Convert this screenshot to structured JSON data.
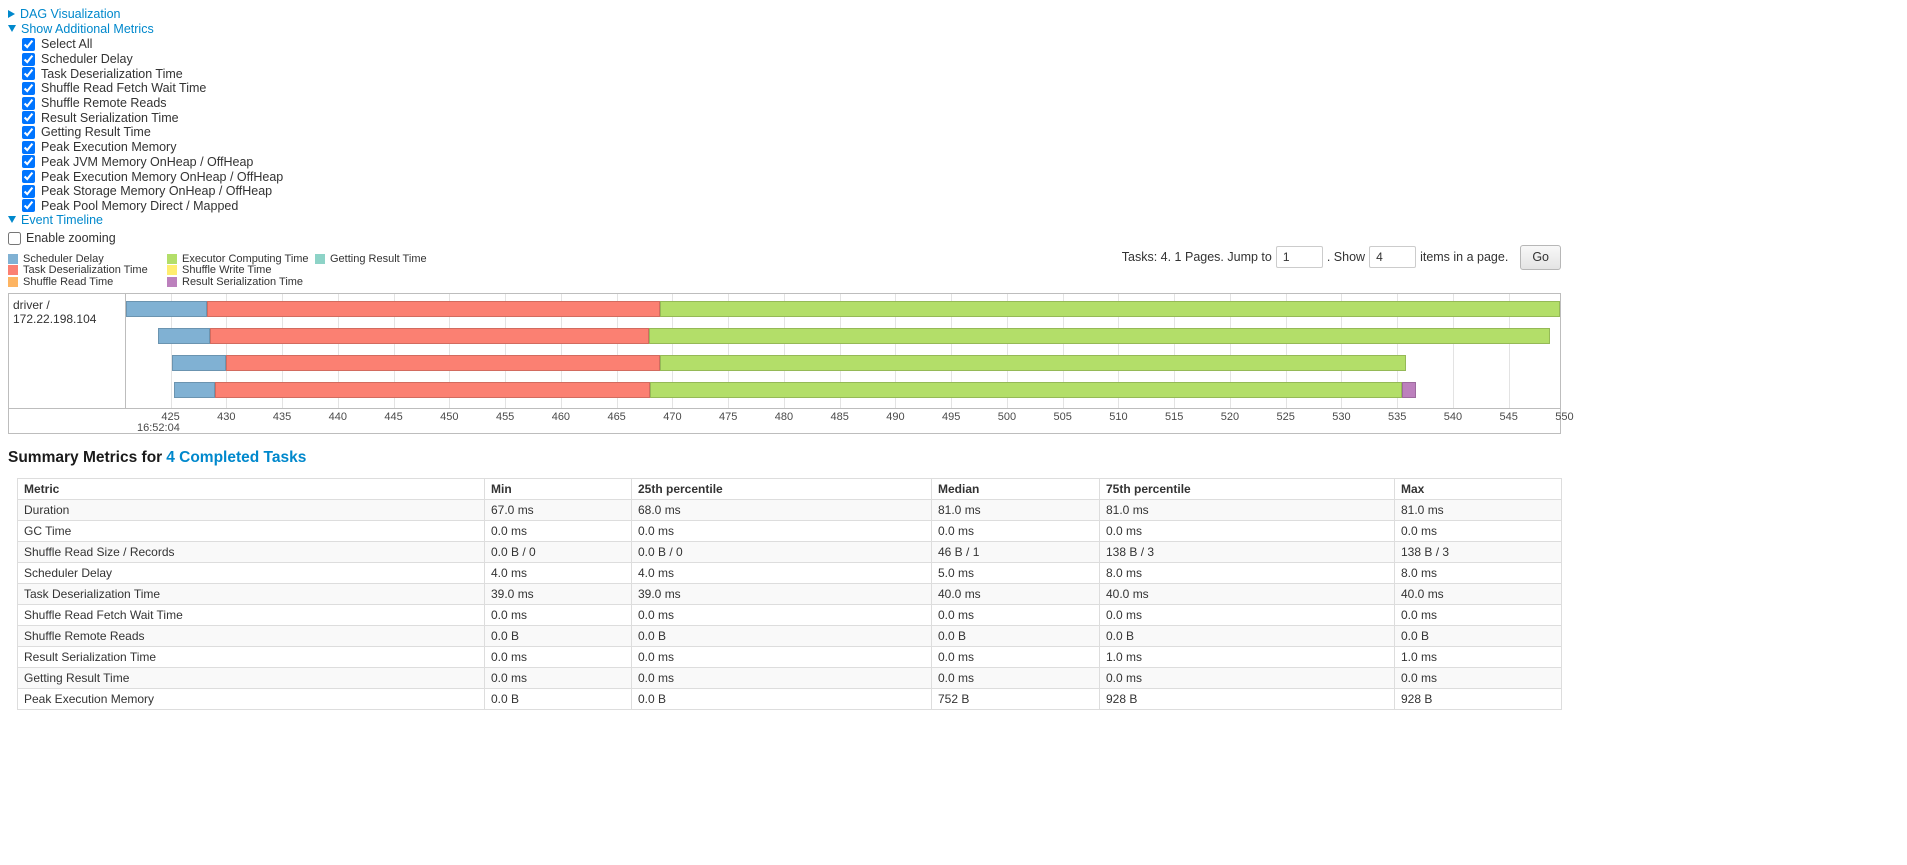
{
  "colors": {
    "link": "#0088cc"
  },
  "toggles": {
    "dag": "DAG Visualization",
    "additional_metrics": "Show Additional Metrics",
    "event_timeline": "Event Timeline"
  },
  "metrics_checkboxes": [
    {
      "label": "Select All",
      "checked": true
    },
    {
      "label": "Scheduler Delay",
      "checked": true
    },
    {
      "label": "Task Deserialization Time",
      "checked": true
    },
    {
      "label": "Shuffle Read Fetch Wait Time",
      "checked": true
    },
    {
      "label": "Shuffle Remote Reads",
      "checked": true
    },
    {
      "label": "Result Serialization Time",
      "checked": true
    },
    {
      "label": "Getting Result Time",
      "checked": true
    },
    {
      "label": "Peak Execution Memory",
      "checked": true
    },
    {
      "label": "Peak JVM Memory OnHeap / OffHeap",
      "checked": true
    },
    {
      "label": "Peak Execution Memory OnHeap / OffHeap",
      "checked": true
    },
    {
      "label": "Peak Storage Memory OnHeap / OffHeap",
      "checked": true
    },
    {
      "label": "Peak Pool Memory Direct / Mapped",
      "checked": true
    }
  ],
  "enable_zooming": {
    "label": "Enable zooming",
    "checked": false
  },
  "legend": {
    "columns": [
      [
        {
          "label": "Scheduler Delay",
          "type": "scheduler_delay"
        },
        {
          "label": "Task Deserialization Time",
          "type": "task_deserialization"
        },
        {
          "label": "Shuffle Read Time",
          "type": "shuffle_read"
        }
      ],
      [
        {
          "label": "Executor Computing Time",
          "type": "executor_computing"
        },
        {
          "label": "Shuffle Write Time",
          "type": "shuffle_write"
        },
        {
          "label": "Result Serialization Time",
          "type": "result_serialization"
        }
      ],
      [
        {
          "label": "Getting Result Time",
          "type": "getting_result"
        }
      ]
    ]
  },
  "pagination": {
    "prefix": "Tasks: 4. 1 Pages. Jump to",
    "jump_value": "1",
    "middle": ". Show",
    "show_value": "4",
    "suffix": "items in a page.",
    "go_label": "Go"
  },
  "timeline": {
    "group_label": "driver / 172.22.198.104",
    "axis": {
      "min": 421,
      "max": 549.6,
      "ticks": [
        425,
        430,
        435,
        440,
        445,
        450,
        455,
        460,
        465,
        470,
        475,
        480,
        485,
        490,
        495,
        500,
        505,
        510,
        515,
        520,
        525,
        530,
        535,
        540,
        545,
        550
      ],
      "major_label": "16:52:04"
    },
    "palette": {
      "scheduler_delay": {
        "fill": "#80B1D3",
        "stroke": "#6B94B0"
      },
      "task_deserialization": {
        "fill": "#FB8072",
        "stroke": "#D26B5F"
      },
      "shuffle_read": {
        "fill": "#FDB462",
        "stroke": "#D39651"
      },
      "executor_computing": {
        "fill": "#B3DE69",
        "stroke": "#95B957"
      },
      "shuffle_write": {
        "fill": "#FFED6F",
        "stroke": "#D5C65C"
      },
      "result_serialization": {
        "fill": "#BC80BD",
        "stroke": "#9D6B9E"
      },
      "getting_result": {
        "fill": "#8DD3C7",
        "stroke": "#75B0A6"
      }
    },
    "tasks": [
      {
        "segments": [
          {
            "type": "scheduler_delay",
            "start": 421.0,
            "end": 428.3
          },
          {
            "type": "task_deserialization",
            "start": 428.3,
            "end": 468.9
          },
          {
            "type": "executor_computing",
            "start": 468.9,
            "end": 549.6
          }
        ]
      },
      {
        "segments": [
          {
            "type": "scheduler_delay",
            "start": 423.9,
            "end": 428.5
          },
          {
            "type": "task_deserialization",
            "start": 428.5,
            "end": 467.9
          },
          {
            "type": "executor_computing",
            "start": 467.9,
            "end": 548.7
          }
        ]
      },
      {
        "segments": [
          {
            "type": "scheduler_delay",
            "start": 425.1,
            "end": 430.0
          },
          {
            "type": "task_deserialization",
            "start": 430.0,
            "end": 468.9
          },
          {
            "type": "executor_computing",
            "start": 468.9,
            "end": 535.8
          }
        ]
      },
      {
        "segments": [
          {
            "type": "scheduler_delay",
            "start": 425.3,
            "end": 429.0
          },
          {
            "type": "task_deserialization",
            "start": 429.0,
            "end": 468.0
          },
          {
            "type": "executor_computing",
            "start": 468.0,
            "end": 535.4
          },
          {
            "type": "result_serialization",
            "start": 535.4,
            "end": 536.7
          }
        ]
      }
    ]
  },
  "summary": {
    "title_prefix": "Summary Metrics for",
    "title_link": "4 Completed Tasks",
    "table": {
      "columns": [
        "Metric",
        "Min",
        "25th percentile",
        "Median",
        "75th percentile",
        "Max"
      ],
      "rows": [
        [
          "Duration",
          "67.0 ms",
          "68.0 ms",
          "81.0 ms",
          "81.0 ms",
          "81.0 ms"
        ],
        [
          "GC Time",
          "0.0 ms",
          "0.0 ms",
          "0.0 ms",
          "0.0 ms",
          "0.0 ms"
        ],
        [
          "Shuffle Read Size / Records",
          "0.0 B / 0",
          "0.0 B / 0",
          "46 B / 1",
          "138 B / 3",
          "138 B / 3"
        ],
        [
          "Scheduler Delay",
          "4.0 ms",
          "4.0 ms",
          "5.0 ms",
          "8.0 ms",
          "8.0 ms"
        ],
        [
          "Task Deserialization Time",
          "39.0 ms",
          "39.0 ms",
          "40.0 ms",
          "40.0 ms",
          "40.0 ms"
        ],
        [
          "Shuffle Read Fetch Wait Time",
          "0.0 ms",
          "0.0 ms",
          "0.0 ms",
          "0.0 ms",
          "0.0 ms"
        ],
        [
          "Shuffle Remote Reads",
          "0.0 B",
          "0.0 B",
          "0.0 B",
          "0.0 B",
          "0.0 B"
        ],
        [
          "Result Serialization Time",
          "0.0 ms",
          "0.0 ms",
          "0.0 ms",
          "1.0 ms",
          "1.0 ms"
        ],
        [
          "Getting Result Time",
          "0.0 ms",
          "0.0 ms",
          "0.0 ms",
          "0.0 ms",
          "0.0 ms"
        ],
        [
          "Peak Execution Memory",
          "0.0 B",
          "0.0 B",
          "752 B",
          "928 B",
          "928 B"
        ]
      ]
    }
  }
}
